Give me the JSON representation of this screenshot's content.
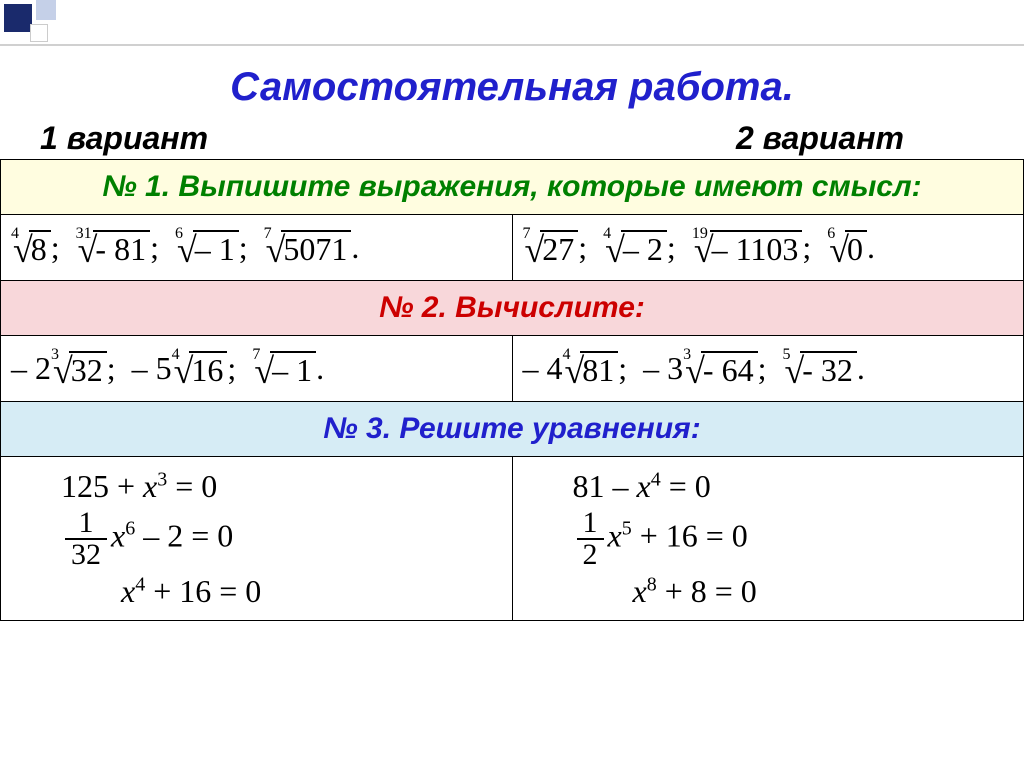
{
  "title": "Самостоятельная  работа.",
  "variant1": "1 вариант",
  "variant2": "2 вариант",
  "task1": {
    "header": "№ 1.   Выпишите  выражения,  которые  имеют смысл:",
    "bg": "#fffde0",
    "color": "#008000",
    "v1": [
      {
        "idx": "4",
        "rad": "8",
        "after": ";"
      },
      {
        "idx": "31",
        "rad": "- 81",
        "after": ";"
      },
      {
        "idx": "6",
        "rad": "– 1",
        "after": ";"
      },
      {
        "idx": "7",
        "rad": "5071",
        "after": "."
      }
    ],
    "v2": [
      {
        "idx": "7",
        "rad": "27",
        "after": ";"
      },
      {
        "idx": "4",
        "rad": "– 2",
        "after": ";"
      },
      {
        "idx": "19",
        "rad": "– 1103",
        "after": ";"
      },
      {
        "idx": "6",
        "rad": "0",
        "after": "."
      }
    ]
  },
  "task2": {
    "header": "№ 2.  Вычислите:",
    "bg": "#f8d7da",
    "color": "#cc0000",
    "v1": [
      {
        "coef": "– 2",
        "idx": "3",
        "rad": "32",
        "after": ";"
      },
      {
        "coef": "– 5",
        "idx": "4",
        "rad": "16",
        "after": ";"
      },
      {
        "coef": "",
        "idx": "7",
        "rad": "– 1",
        "after": "."
      }
    ],
    "v2": [
      {
        "coef": "– 4",
        "idx": "4",
        "rad": "81",
        "after": ";"
      },
      {
        "coef": "– 3",
        "idx": "3",
        "rad": "- 64",
        "after": ";"
      },
      {
        "coef": "",
        "idx": "5",
        "rad": "- 32",
        "after": "."
      }
    ]
  },
  "task3": {
    "header": "№ 3.   Решите  уравнения:",
    "bg": "#d6ecf5",
    "color": "#2020cc",
    "v1": {
      "eq1_a": "125 + ",
      "eq1_b": "x",
      "eq1_p": "3",
      "eq1_c": " = 0",
      "eq2_fn": "1",
      "eq2_fd": "32",
      "eq2_b": "x",
      "eq2_p": "6",
      "eq2_c": " – 2 = 0",
      "eq3_b": "x",
      "eq3_p": "4",
      "eq3_c": " + 16 = 0"
    },
    "v2": {
      "eq1_a": "81 – ",
      "eq1_b": "x",
      "eq1_p": "4",
      "eq1_c": " = 0",
      "eq2_fn": "1",
      "eq2_fd": "2",
      "eq2_b": "x",
      "eq2_p": "5",
      "eq2_c": " + 16 = 0",
      "eq3_b": "x",
      "eq3_p": "8",
      "eq3_c": " + 8 = 0"
    }
  }
}
